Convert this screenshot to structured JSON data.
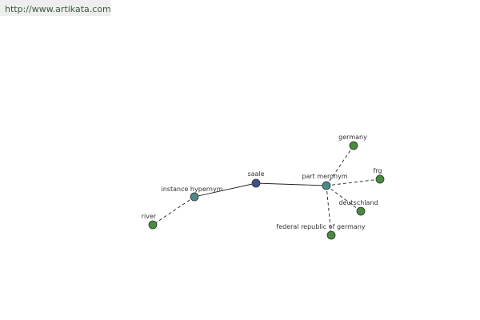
{
  "watermark": "http://www.artikata.com",
  "nodes": [
    {
      "label": "saale"
    },
    {
      "label": "instance hypernym"
    },
    {
      "label": "river"
    },
    {
      "label": "part meronym"
    },
    {
      "label": "germany"
    },
    {
      "label": "frg"
    },
    {
      "label": "deutschland"
    },
    {
      "label": "federal republic of germany"
    }
  ]
}
